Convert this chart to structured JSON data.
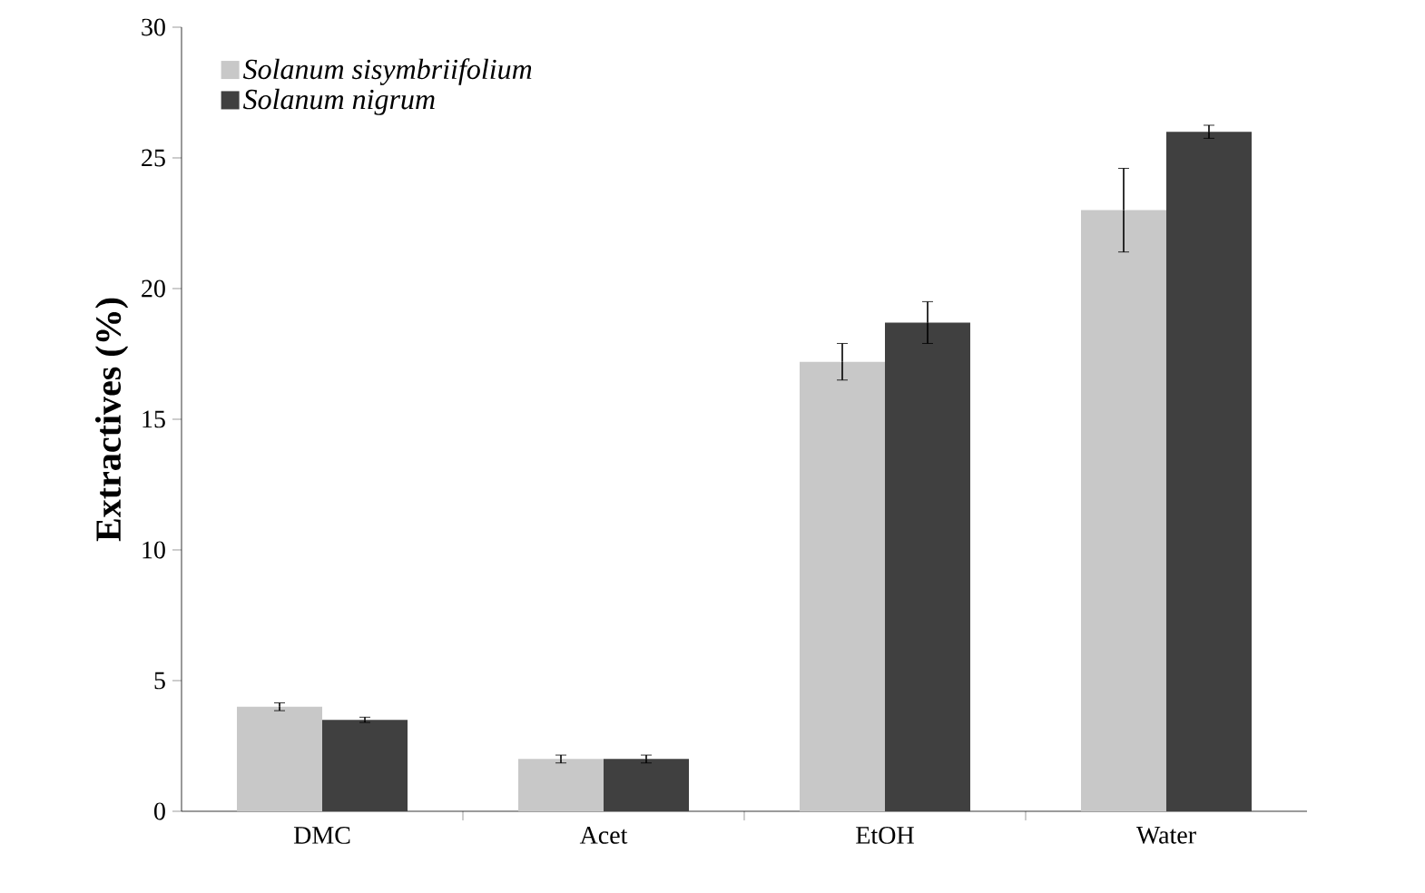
{
  "chart_data": {
    "type": "bar",
    "ylabel": "Extractives (%)",
    "categories": [
      "DMC",
      "Acet",
      "EtOH",
      "Water"
    ],
    "series": [
      {
        "name": "Solanum sisymbriifolium",
        "color": "#c8c8c8",
        "values": [
          4.0,
          2.0,
          17.2,
          23.0
        ],
        "errors": [
          0.15,
          0.15,
          0.7,
          1.6
        ]
      },
      {
        "name": "Solanum nigrum",
        "color": "#404040",
        "values": [
          3.5,
          2.0,
          18.7,
          26.0
        ],
        "errors": [
          0.1,
          0.15,
          0.8,
          0.25
        ]
      }
    ],
    "ylim": [
      0,
      30
    ],
    "yticks": [
      0,
      5,
      10,
      15,
      20,
      25,
      30
    ],
    "grid": false,
    "legend": "top left"
  }
}
